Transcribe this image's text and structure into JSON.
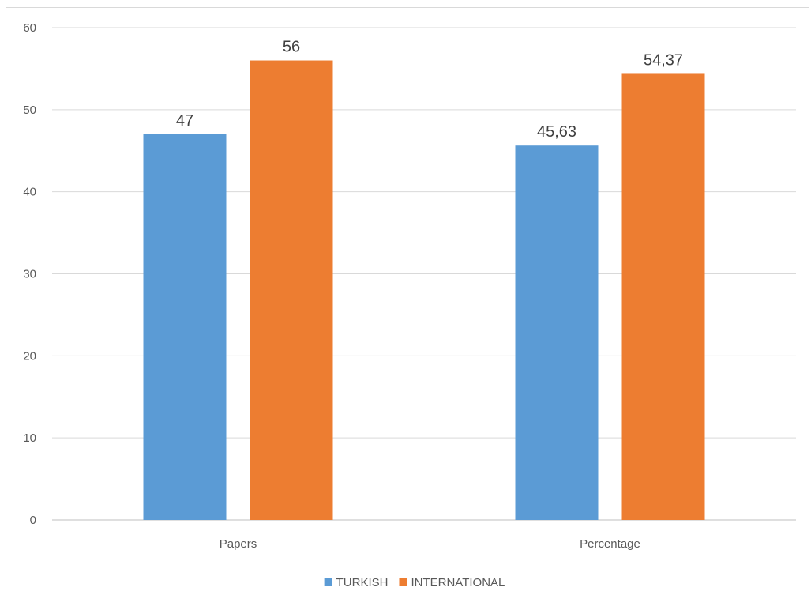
{
  "chart_data": {
    "type": "bar",
    "categories": [
      "Papers",
      "Percentage"
    ],
    "series": [
      {
        "name": "TURKISH",
        "values": [
          47,
          45.63
        ],
        "labels": [
          "47",
          "45,63"
        ],
        "color": "#5b9bd5"
      },
      {
        "name": "INTERNATIONAL",
        "values": [
          56,
          54.37
        ],
        "labels": [
          "56",
          "54,37"
        ],
        "color": "#ed7d31"
      }
    ],
    "ylim": [
      0,
      60
    ],
    "yticks": [
      0,
      10,
      20,
      30,
      40,
      50,
      60
    ],
    "title": "",
    "xlabel": "",
    "ylabel": "",
    "grid": true,
    "legend_position": "bottom",
    "gridline_color": "#d9d9d9",
    "axis_color": "#bfbfbf"
  }
}
